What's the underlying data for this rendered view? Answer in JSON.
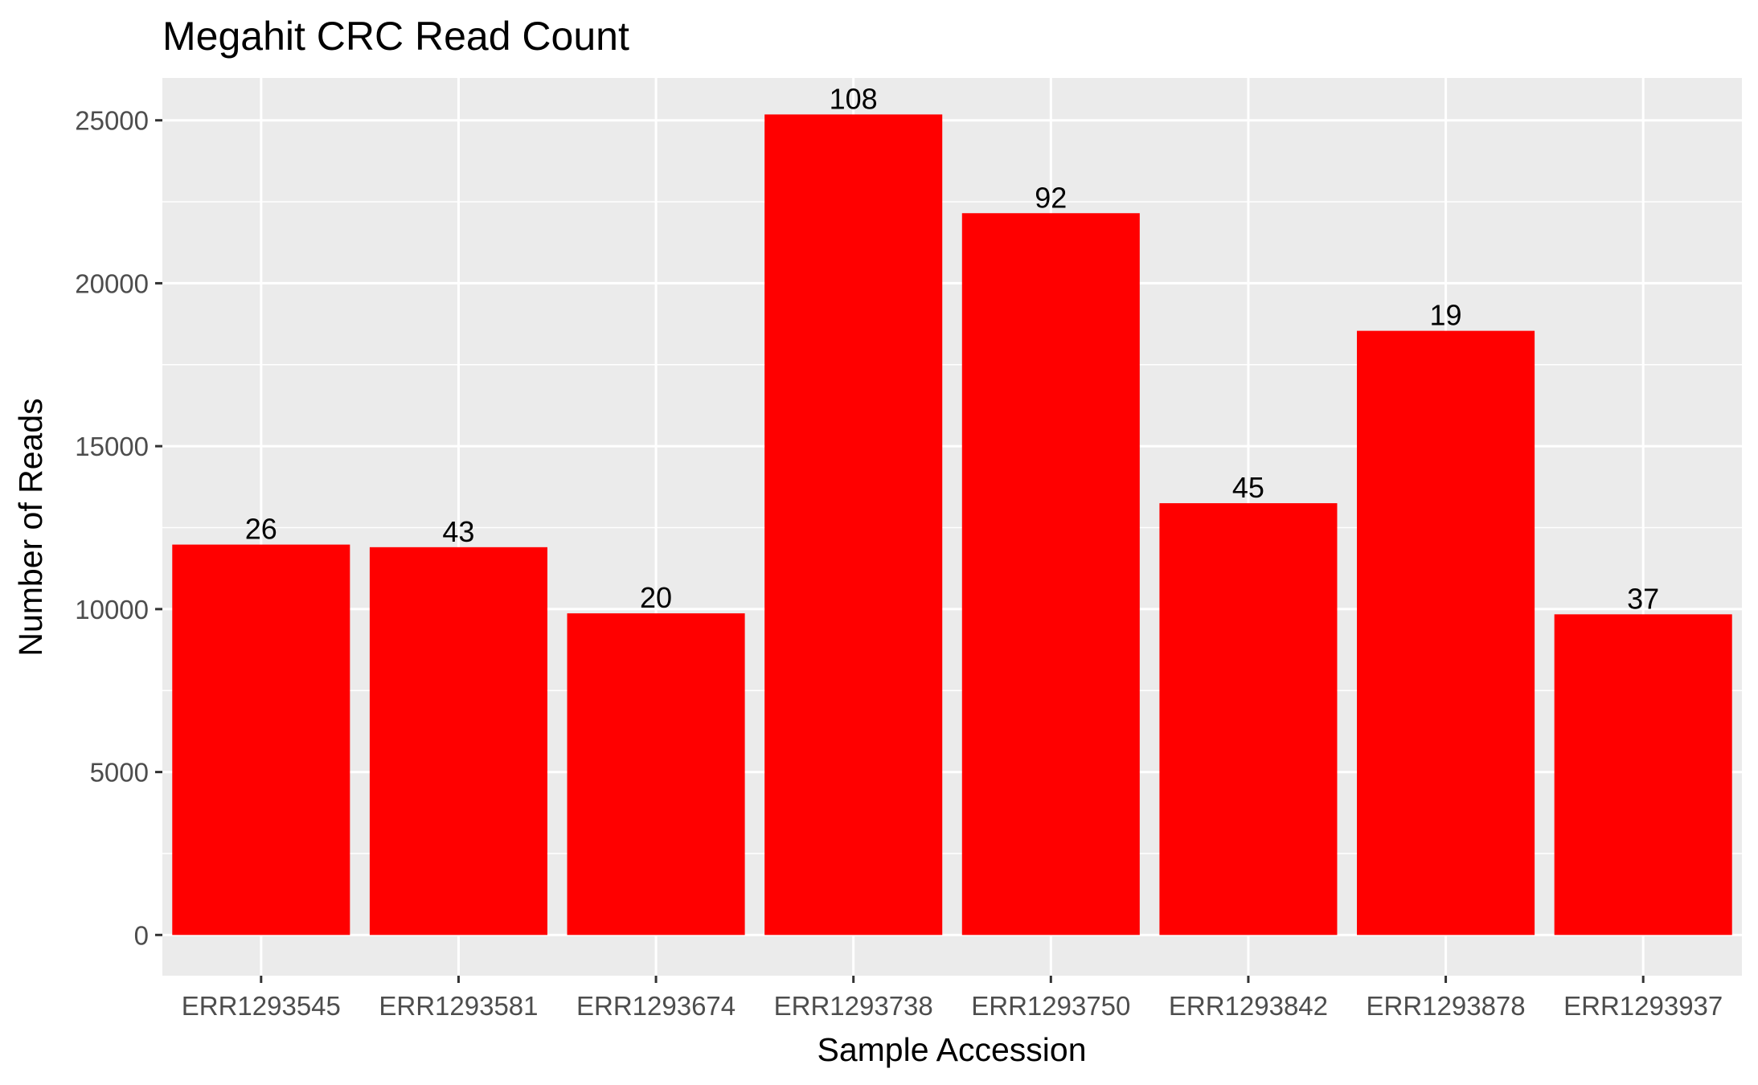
{
  "chart_data": {
    "type": "bar",
    "title": "Megahit CRC Read Count",
    "xlabel": "Sample Accession",
    "ylabel": "Number of Reads",
    "categories": [
      "ERR1293545",
      "ERR1293581",
      "ERR1293674",
      "ERR1293738",
      "ERR1293750",
      "ERR1293842",
      "ERR1293878",
      "ERR1293937"
    ],
    "values": [
      11980,
      11900,
      9870,
      25180,
      22150,
      13250,
      18540,
      9840
    ],
    "bar_labels": [
      "26",
      "43",
      "20",
      "108",
      "92",
      "45",
      "19",
      "37"
    ],
    "yticks": [
      0,
      5000,
      10000,
      15000,
      20000,
      25000
    ],
    "ylim": [
      -1250,
      26300
    ],
    "grid": true,
    "colors": {
      "bar": "#ff0000",
      "panel_background": "#ebebeb",
      "grid": "#ffffff"
    }
  }
}
